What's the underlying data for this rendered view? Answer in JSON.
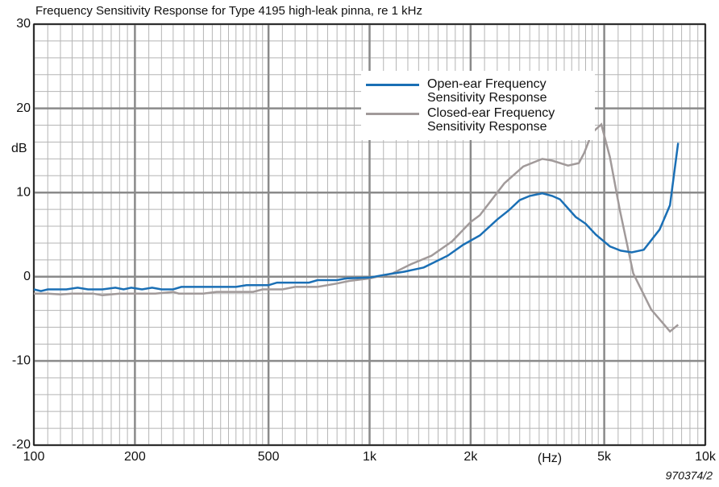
{
  "chart_data": {
    "type": "line",
    "title": "Frequency Sensitivity Response for Type 4195 high-leak pinna, re 1 kHz",
    "y_label": "dB",
    "x_label": "(Hz)",
    "annotation": "970374/2",
    "log_x": true,
    "grid": true,
    "legend": "upper right",
    "xlim": [
      100,
      10000
    ],
    "ylim": [
      -20,
      30
    ],
    "xticks": [
      100,
      200,
      500,
      {
        "value": 1000,
        "label": "1k"
      },
      {
        "value": 2000,
        "label": "2k"
      },
      {
        "value": 5000,
        "label": "5k"
      },
      {
        "value": 10000,
        "label": "10k"
      }
    ],
    "yticks": [
      -20,
      -10,
      0,
      10,
      20,
      30
    ],
    "minor_xticks": [
      110,
      120,
      130,
      140,
      150,
      160,
      170,
      180,
      190,
      220,
      240,
      260,
      280,
      300,
      320,
      340,
      360,
      380,
      400,
      420,
      440,
      460,
      480,
      550,
      600,
      650,
      700,
      750,
      800,
      850,
      900,
      950,
      1100,
      1200,
      1300,
      1400,
      1500,
      1600,
      1700,
      1800,
      1900,
      2200,
      2400,
      2600,
      2800,
      3000,
      3200,
      3400,
      3600,
      3800,
      4000,
      4200,
      4400,
      4600,
      4800,
      5500,
      6000,
      6500,
      7000,
      7500,
      8000,
      8500,
      9000,
      9500
    ],
    "minor_yticks": [
      -18,
      -16,
      -14,
      -12,
      -8,
      -6,
      -4,
      -2,
      2,
      4,
      6,
      8,
      12,
      14,
      16,
      18,
      22,
      24,
      26,
      28
    ],
    "series": [
      {
        "name": "Open-ear Frequency Sensitivity Response",
        "color": "#1a6fb5",
        "x": [
          100,
          105,
          110,
          125,
          135,
          145,
          160,
          175,
          185,
          195,
          210,
          225,
          240,
          260,
          275,
          300,
          350,
          400,
          430,
          500,
          530,
          600,
          660,
          700,
          800,
          850,
          1000,
          1100,
          1270,
          1450,
          1710,
          1900,
          2130,
          2400,
          2600,
          2800,
          3000,
          3270,
          3500,
          3690,
          4110,
          4400,
          4720,
          5200,
          5600,
          6040,
          6560,
          7310,
          7850,
          8300
        ],
        "values": [
          -1.5,
          -1.7,
          -1.5,
          -1.5,
          -1.3,
          -1.5,
          -1.5,
          -1.3,
          -1.5,
          -1.3,
          -1.5,
          -1.3,
          -1.5,
          -1.5,
          -1.2,
          -1.2,
          -1.2,
          -1.2,
          -1.0,
          -1.0,
          -0.7,
          -0.7,
          -0.7,
          -0.4,
          -0.4,
          -0.2,
          -0.1,
          0.2,
          0.6,
          1.1,
          2.5,
          3.8,
          4.9,
          6.8,
          7.9,
          9.1,
          9.6,
          9.9,
          9.6,
          9.2,
          7.1,
          6.3,
          5.0,
          3.6,
          3.1,
          2.9,
          3.2,
          5.6,
          8.5,
          15.9
        ]
      },
      {
        "name": "Closed-ear Frequency Sensitivity Response",
        "color": "#a19a9a",
        "x": [
          100,
          110,
          120,
          130,
          150,
          160,
          180,
          230,
          260,
          270,
          320,
          350,
          450,
          480,
          550,
          600,
          700,
          800,
          870,
          1000,
          1170,
          1330,
          1530,
          1760,
          2000,
          2130,
          2520,
          2870,
          3270,
          3500,
          3900,
          4200,
          4360,
          4600,
          4900,
          5200,
          5560,
          6100,
          6900,
          7850,
          8300
        ],
        "values": [
          -2,
          -2,
          -2.1,
          -2,
          -2,
          -2.2,
          -2,
          -2,
          -1.8,
          -2,
          -2,
          -1.8,
          -1.8,
          -1.5,
          -1.5,
          -1.2,
          -1.2,
          -0.8,
          -0.5,
          -0.2,
          0.4,
          1.5,
          2.5,
          4.2,
          6.5,
          7.3,
          11.1,
          13.1,
          14.0,
          13.8,
          13.2,
          13.5,
          14.7,
          17.1,
          18.1,
          14.2,
          8,
          0.4,
          -3.9,
          -6.5,
          -5.7
        ]
      }
    ]
  }
}
